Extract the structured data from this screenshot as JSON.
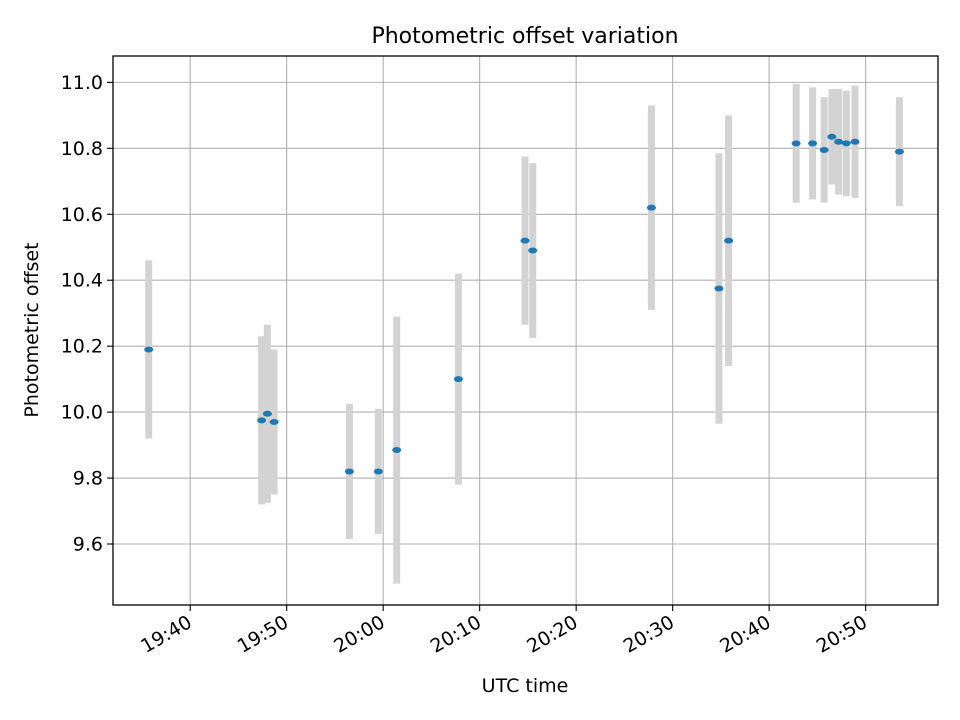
{
  "chart_data": {
    "type": "scatter",
    "title": "Photometric offset variation",
    "xlabel": "UTC time",
    "ylabel": "Photometric offset",
    "xlim": [
      "19:32:00",
      "20:57:30"
    ],
    "ylim": [
      9.415,
      11.08
    ],
    "grid": true,
    "x_ticks": [
      "19:40",
      "19:50",
      "20:00",
      "20:10",
      "20:20",
      "20:30",
      "20:40",
      "20:50"
    ],
    "y_ticks": [
      "9.6",
      "9.8",
      "10.0",
      "10.2",
      "10.4",
      "10.6",
      "10.8",
      "11.0"
    ],
    "series": [
      {
        "marker_color": "#1f77b4",
        "errorbar_color": "#d3d3d3",
        "points": [
          {
            "x": "19:35:42",
            "y": 10.19,
            "yerr": 0.27
          },
          {
            "x": "19:47:24",
            "y": 9.975,
            "yerr": 0.255
          },
          {
            "x": "19:48:00",
            "y": 9.995,
            "yerr": 0.27
          },
          {
            "x": "19:48:42",
            "y": 9.97,
            "yerr": 0.22
          },
          {
            "x": "19:56:30",
            "y": 9.82,
            "yerr": 0.205
          },
          {
            "x": "19:59:30",
            "y": 9.82,
            "yerr": 0.19
          },
          {
            "x": "20:01:24",
            "y": 9.885,
            "yerr": 0.405
          },
          {
            "x": "20:07:48",
            "y": 10.1,
            "yerr": 0.32
          },
          {
            "x": "20:14:42",
            "y": 10.52,
            "yerr": 0.255
          },
          {
            "x": "20:15:30",
            "y": 10.49,
            "yerr": 0.265
          },
          {
            "x": "20:27:48",
            "y": 10.62,
            "yerr": 0.31
          },
          {
            "x": "20:34:48",
            "y": 10.375,
            "yerr": 0.41
          },
          {
            "x": "20:35:48",
            "y": 10.52,
            "yerr": 0.38
          },
          {
            "x": "20:42:48",
            "y": 10.815,
            "yerr": 0.18
          },
          {
            "x": "20:44:30",
            "y": 10.815,
            "yerr": 0.17
          },
          {
            "x": "20:45:42",
            "y": 10.795,
            "yerr": 0.16
          },
          {
            "x": "20:46:30",
            "y": 10.835,
            "yerr": 0.145
          },
          {
            "x": "20:47:12",
            "y": 10.82,
            "yerr": 0.16
          },
          {
            "x": "20:48:00",
            "y": 10.815,
            "yerr": 0.16
          },
          {
            "x": "20:48:54",
            "y": 10.82,
            "yerr": 0.17
          },
          {
            "x": "20:53:30",
            "y": 10.79,
            "yerr": 0.165
          }
        ]
      }
    ]
  }
}
